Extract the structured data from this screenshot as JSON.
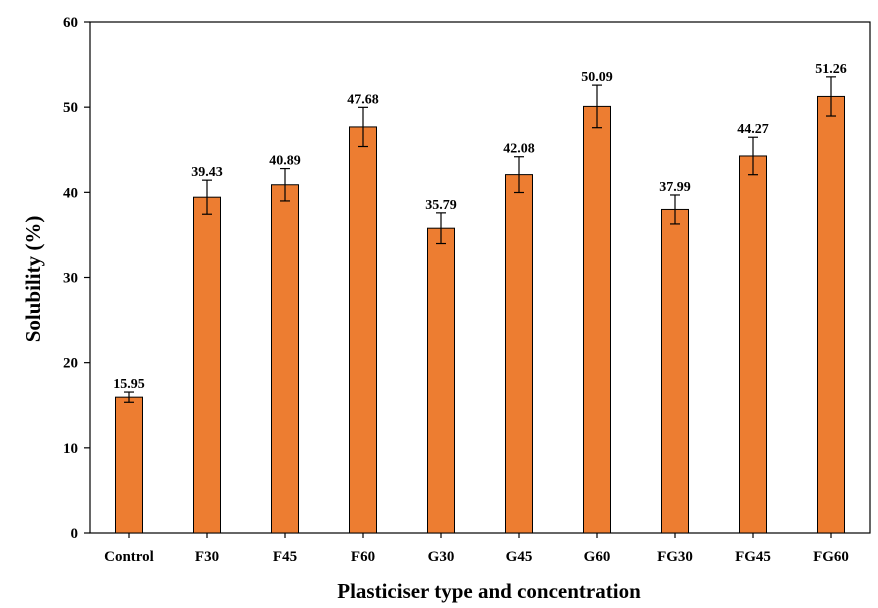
{
  "chart_data": {
    "type": "bar",
    "title": "",
    "xlabel": "Plasticiser type and concentration",
    "ylabel": "Solubility (%)",
    "ylim": [
      0,
      60
    ],
    "yticks": [
      0,
      10,
      20,
      30,
      40,
      50,
      60
    ],
    "ytick_labels": [
      "0",
      "10",
      "20",
      "30",
      "40",
      "50",
      "60"
    ],
    "grid": false,
    "legend": "none",
    "categories": [
      "Control",
      "F30",
      "F45",
      "F60",
      "G30",
      "G45",
      "G60",
      "FG30",
      "FG45",
      "FG60"
    ],
    "values": [
      15.95,
      39.43,
      40.89,
      47.68,
      35.79,
      42.08,
      50.09,
      37.99,
      44.27,
      51.26
    ],
    "value_labels": [
      "15.95",
      "39.43",
      "40.89",
      "47.68",
      "35.79",
      "42.08",
      "50.09",
      "37.99",
      "44.27",
      "51.26"
    ],
    "errors": [
      0.6,
      2.0,
      1.9,
      2.3,
      1.8,
      2.1,
      2.5,
      1.7,
      2.2,
      2.3
    ],
    "bar_color": "#ED7D31",
    "bar_edge_color": "#000000"
  }
}
